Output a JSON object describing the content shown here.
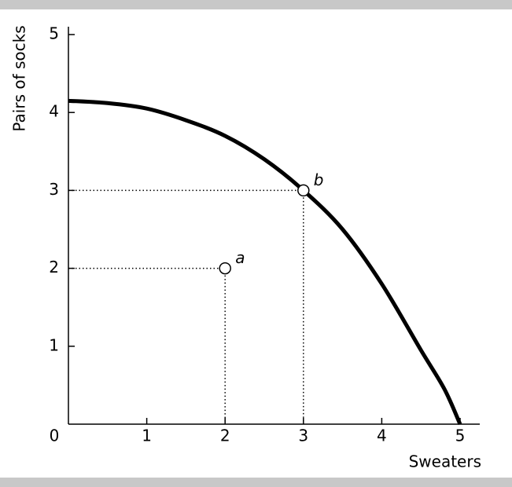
{
  "chart_data": {
    "type": "line",
    "x_label": "Sweaters",
    "y_label": "Pairs of socks",
    "xlim": [
      0,
      5
    ],
    "ylim": [
      0,
      5
    ],
    "xticks": [
      0,
      1,
      2,
      3,
      4,
      5
    ],
    "yticks": [
      1,
      2,
      3,
      4,
      5
    ],
    "series": [
      {
        "color": "#000000",
        "x": [
          0,
          0.5,
          1,
          1.5,
          2,
          2.5,
          3,
          3.5,
          4,
          4.5,
          4.8,
          5
        ],
        "values": [
          4.15,
          4.12,
          4.05,
          3.9,
          3.7,
          3.4,
          3,
          2.5,
          1.8,
          0.95,
          0.45,
          0
        ]
      }
    ],
    "points": [
      {
        "label": "a",
        "x": 2,
        "y": 2
      },
      {
        "label": "b",
        "x": 3,
        "y": 3
      }
    ]
  }
}
